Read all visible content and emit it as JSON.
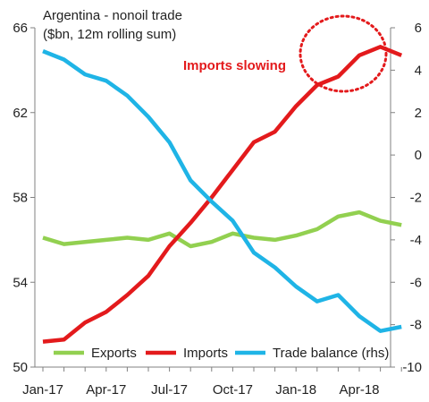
{
  "chart_data": {
    "type": "line",
    "title_lines": [
      "Argentina  - nonoil trade",
      "($bn, 12m rolling sum)"
    ],
    "x": [
      "Jan-17",
      "Feb-17",
      "Mar-17",
      "Apr-17",
      "May-17",
      "Jun-17",
      "Jul-17",
      "Aug-17",
      "Sep-17",
      "Oct-17",
      "Nov-17",
      "Dec-17",
      "Jan-18",
      "Feb-18",
      "Mar-18",
      "Apr-18",
      "May-18",
      "Jun-18"
    ],
    "x_tick_labels": [
      "Jan-17",
      "Apr-17",
      "Jul-17",
      "Oct-17",
      "Jan-18",
      "Apr-18"
    ],
    "y_left": {
      "ylim": [
        50,
        66
      ],
      "ticks": [
        50,
        54,
        58,
        62,
        66
      ]
    },
    "y_right": {
      "ylim": [
        -10,
        6
      ],
      "ticks": [
        -10,
        -8,
        -6,
        -4,
        -2,
        0,
        2,
        4,
        6
      ]
    },
    "series": [
      {
        "name": "Exports",
        "axis": "left",
        "color": "#92d050",
        "values": [
          56.1,
          55.8,
          55.9,
          56.0,
          56.1,
          56.0,
          56.3,
          55.7,
          55.9,
          56.3,
          56.1,
          56.0,
          56.2,
          56.5,
          57.1,
          57.3,
          56.9,
          56.7
        ]
      },
      {
        "name": "Imports",
        "axis": "left",
        "color": "#e31a1c",
        "values": [
          51.2,
          51.3,
          52.1,
          52.6,
          53.4,
          54.3,
          55.7,
          56.8,
          58.0,
          59.3,
          60.6,
          61.1,
          62.3,
          63.3,
          63.7,
          64.7,
          65.1,
          64.7
        ]
      },
      {
        "name": "Trade balance (rhs)",
        "axis": "right",
        "color": "#1fb4e6",
        "values": [
          4.9,
          4.5,
          3.8,
          3.5,
          2.8,
          1.8,
          0.6,
          -1.2,
          -2.2,
          -3.1,
          -4.6,
          -5.3,
          -6.2,
          -6.9,
          -6.6,
          -7.6,
          -8.3,
          -8.1
        ]
      }
    ],
    "legend_position": "bottom",
    "grid": false,
    "annotation": {
      "text": "Imports slowing",
      "color": "#e31a1c",
      "circle_color": "#e31a1c"
    }
  }
}
